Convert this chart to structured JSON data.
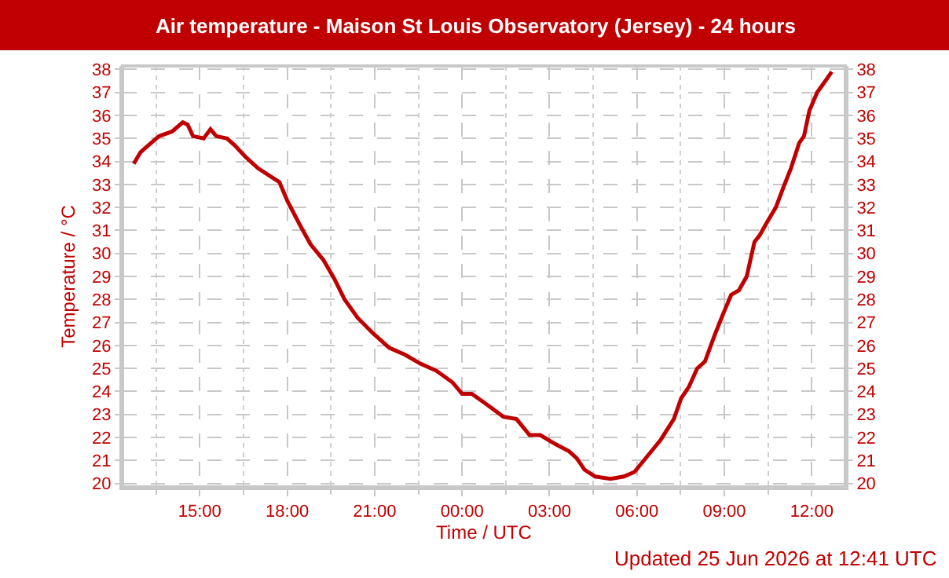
{
  "chart_data": {
    "type": "line",
    "title": "Air temperature - Maison St Louis Observatory (Jersey) - 24 hours",
    "xlabel": "Time / UTC",
    "ylabel": "Temperature / °C",
    "annotations": [
      "Updated 25 Jun 2026 at 12:41 UTC"
    ],
    "x": [
      "2026-06-24T12:44",
      "2026-06-24T12:58",
      "2026-06-24T13:14",
      "2026-06-24T13:36",
      "2026-06-24T14:03",
      "2026-06-24T14:25",
      "2026-06-24T14:35",
      "2026-06-24T14:46",
      "2026-06-24T15:08",
      "2026-06-24T15:22",
      "2026-06-24T15:34",
      "2026-06-24T15:56",
      "2026-06-24T16:12",
      "2026-06-24T16:34",
      "2026-06-24T17:00",
      "2026-06-24T17:22",
      "2026-06-24T17:44",
      "2026-06-24T18:00",
      "2026-06-24T18:27",
      "2026-06-24T18:48",
      "2026-06-24T19:15",
      "2026-06-24T19:37",
      "2026-06-24T19:58",
      "2026-06-24T20:25",
      "2026-06-24T20:58",
      "2026-06-24T21:30",
      "2026-06-24T22:02",
      "2026-06-24T22:35",
      "2026-06-24T23:07",
      "2026-06-24T23:40",
      "2026-06-25T00:00",
      "2026-06-25T00:20",
      "2026-06-25T00:53",
      "2026-06-25T01:25",
      "2026-06-25T01:52",
      "2026-06-25T02:19",
      "2026-06-25T02:41",
      "2026-06-25T03:13",
      "2026-06-25T03:40",
      "2026-06-25T03:56",
      "2026-06-25T04:12",
      "2026-06-25T04:34",
      "2026-06-25T05:06",
      "2026-06-25T05:33",
      "2026-06-25T05:55",
      "2026-06-25T06:22",
      "2026-06-25T06:49",
      "2026-06-25T07:16",
      "2026-06-25T07:31",
      "2026-06-25T07:47",
      "2026-06-25T08:04",
      "2026-06-25T08:20",
      "2026-06-25T08:41",
      "2026-06-25T08:58",
      "2026-06-25T09:14",
      "2026-06-25T09:30",
      "2026-06-25T09:46",
      "2026-06-25T10:02",
      "2026-06-25T10:13",
      "2026-06-25T10:29",
      "2026-06-25T10:46",
      "2026-06-25T11:02",
      "2026-06-25T11:17",
      "2026-06-25T11:34",
      "2026-06-25T11:44",
      "2026-06-25T11:55",
      "2026-06-25T12:11",
      "2026-06-25T12:28",
      "2026-06-25T12:41"
    ],
    "series": [
      {
        "color": "#c00000",
        "values": [
          33.9,
          34.4,
          34.7,
          35.1,
          35.3,
          35.7,
          35.6,
          35.1,
          35.0,
          35.4,
          35.1,
          35.0,
          34.7,
          34.2,
          33.7,
          33.4,
          33.1,
          32.3,
          31.2,
          30.4,
          29.7,
          28.9,
          28.0,
          27.2,
          26.5,
          25.9,
          25.6,
          25.2,
          24.9,
          24.4,
          23.9,
          23.9,
          23.4,
          22.9,
          22.8,
          22.1,
          22.1,
          21.7,
          21.4,
          21.1,
          20.6,
          20.3,
          20.2,
          20.3,
          20.5,
          21.2,
          21.9,
          22.8,
          23.7,
          24.2,
          25.0,
          25.3,
          26.5,
          27.4,
          28.2,
          28.4,
          29.0,
          30.5,
          30.8,
          31.4,
          32.0,
          32.9,
          33.7,
          34.8,
          35.1,
          36.2,
          37.0,
          37.5,
          37.9
        ]
      }
    ],
    "xlim": [
      "2026-06-24T12:21",
      "2026-06-25T13:09"
    ],
    "xticks": [
      {
        "value": "2026-06-24T15:00",
        "label": "15:00"
      },
      {
        "value": "2026-06-24T18:00",
        "label": "18:00"
      },
      {
        "value": "2026-06-24T21:00",
        "label": "21:00"
      },
      {
        "value": "2026-06-25T00:00",
        "label": "00:00"
      },
      {
        "value": "2026-06-25T03:00",
        "label": "03:00"
      },
      {
        "value": "2026-06-25T06:00",
        "label": "06:00"
      },
      {
        "value": "2026-06-25T09:00",
        "label": "09:00"
      },
      {
        "value": "2026-06-25T12:00",
        "label": "12:00"
      }
    ],
    "ylim": [
      19.85,
      38.15
    ],
    "yticks": [
      20,
      21,
      22,
      23,
      24,
      25,
      26,
      27,
      28,
      29,
      30,
      31,
      32,
      33,
      34,
      35,
      36,
      37,
      38
    ],
    "y2lim": [
      19.85,
      38.15
    ],
    "y2ticks": [
      20,
      21,
      22,
      23,
      24,
      25,
      26,
      27,
      28,
      29,
      30,
      31,
      32,
      33,
      34,
      35,
      36,
      37,
      38
    ],
    "grid": true,
    "marker": "none",
    "line_style": "solid"
  }
}
